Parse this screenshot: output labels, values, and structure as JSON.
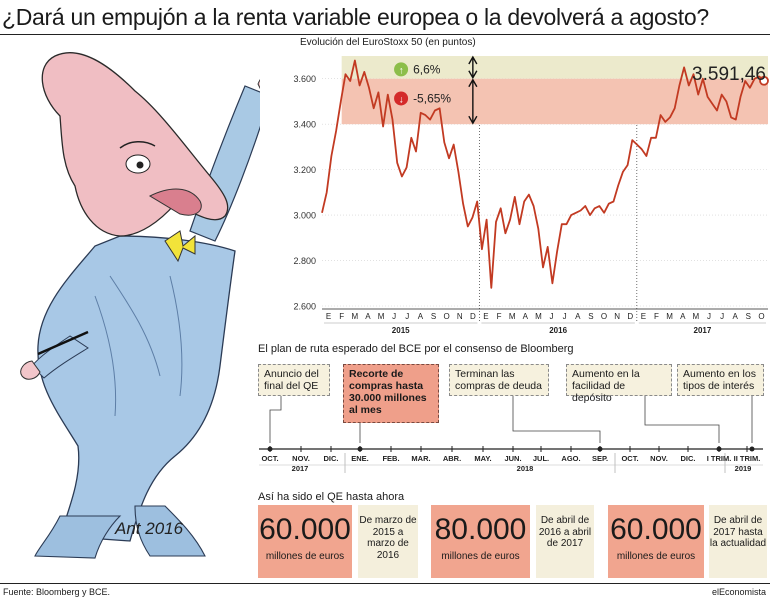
{
  "title": "¿Dará un empujón a la renta variable europea o la devolverá a agosto?",
  "chart_data": {
    "type": "line",
    "title": "Evolución del EuroStoxx 50 (en puntos)",
    "ylim": [
      2600,
      3700
    ],
    "yticks": [
      "2.600",
      "2.800",
      "3.000",
      "3.200",
      "3.400",
      "3.600"
    ],
    "ytick_values": [
      2600,
      2800,
      3000,
      3200,
      3400,
      3600
    ],
    "month_labels": [
      "E",
      "F",
      "M",
      "A",
      "M",
      "J",
      "J",
      "A",
      "S",
      "O",
      "N",
      "D",
      "E",
      "F",
      "M",
      "A",
      "M",
      "J",
      "J",
      "A",
      "S",
      "O",
      "N",
      "D",
      "E",
      "F",
      "M",
      "A",
      "M",
      "J",
      "J",
      "A",
      "S",
      "O"
    ],
    "year_labels": [
      "2015",
      "2016",
      "2017"
    ],
    "series": [
      {
        "values": [
          3010,
          3100,
          3260,
          3370,
          3500,
          3620,
          3590,
          3680,
          3570,
          3630,
          3560,
          3470,
          3540,
          3390,
          3530,
          3420,
          3230,
          3170,
          3210,
          3340,
          3280,
          3450,
          3440,
          3420,
          3460,
          3470,
          3320,
          3250,
          3310,
          3190,
          3050,
          2950,
          2990,
          3060,
          2850,
          2980,
          2680,
          2970,
          3030,
          2920,
          2980,
          3080,
          2960,
          3060,
          3090,
          3040,
          2940,
          2770,
          2860,
          2700,
          2840,
          2960,
          2960,
          3000,
          3010,
          3020,
          3040,
          3000,
          3030,
          3040,
          3010,
          3050,
          3060,
          3130,
          3190,
          3220,
          3330,
          3310,
          3290,
          3260,
          3340,
          3340,
          3440,
          3410,
          3430,
          3470,
          3570,
          3650,
          3570,
          3620,
          3530,
          3600,
          3520,
          3490,
          3460,
          3530,
          3500,
          3430,
          3420,
          3520,
          3590,
          3560,
          3600,
          3610,
          3591
        ]
      }
    ],
    "annotations": {
      "last_value": "3.591,46",
      "up_change": "6,6%",
      "down_change": "-5,65%",
      "band_high": 3700,
      "band_mid": 3600,
      "band_low": 3400
    },
    "colors": {
      "line": "#c23a22",
      "up_band": "#eceacc",
      "down_band": "#f4c3b2",
      "up_icon": "#8cbe4a",
      "down_icon": "#d42a2a"
    }
  },
  "roadmap": {
    "title": "El plan de ruta esperado del BCE por el consenso de Bloomberg",
    "months": [
      "OCT.",
      "NOV.",
      "DIC.",
      "ENE.",
      "FEB.",
      "MAR.",
      "ABR.",
      "MAY.",
      "JUN.",
      "JUL.",
      "AGO.",
      "SEP.",
      "OCT.",
      "NOV.",
      "DIC.",
      "I TRIM.",
      "II TRIM."
    ],
    "years": [
      "2017",
      "2018",
      "2019"
    ],
    "events": [
      {
        "text": "Anuncio del final del QE"
      },
      {
        "text": "Recorte de compras hasta 30.000 millones al mes"
      },
      {
        "text": "Terminan las compras de deuda"
      },
      {
        "text": "Aumento en la facilidad de depósito"
      },
      {
        "text": "Aumento en los tipos de interés"
      }
    ]
  },
  "qe": {
    "title": "Así ha sido el QE hasta ahora",
    "blocks": [
      {
        "amount": "60.000",
        "unit": "millones de euros",
        "period": "De marzo de 2015 a marzo de 2016"
      },
      {
        "amount": "80.000",
        "unit": "millones de euros",
        "period": "De abril de 2016 a abril de 2017"
      },
      {
        "amount": "60.000",
        "unit": "millones de euros",
        "period": "De abril de 2017 hasta la actualidad"
      }
    ]
  },
  "footer": {
    "source": "Fuente: Bloomberg y BCE.",
    "brand": "elEconomista"
  },
  "illustration": {
    "signature": "Ant 2016"
  }
}
